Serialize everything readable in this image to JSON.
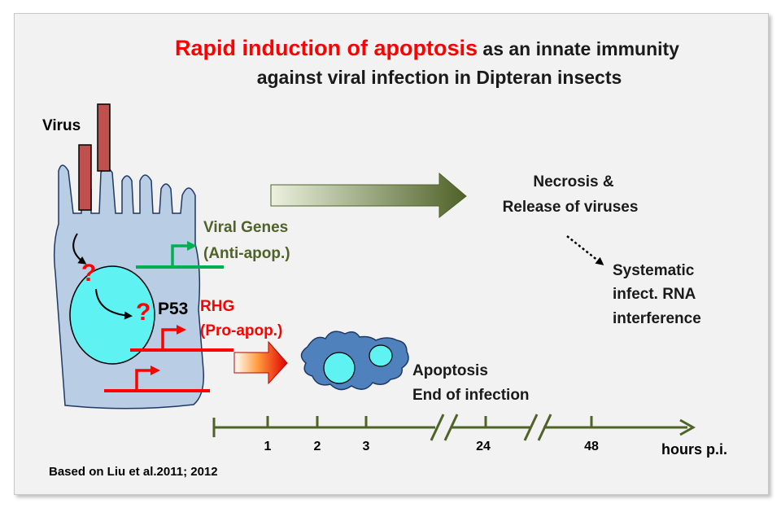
{
  "title": {
    "line1_red": "Rapid induction of apoptosis",
    "line1_rest": " as an innate immunity",
    "line2": "against viral infection in Dipteran insects"
  },
  "labels": {
    "virus": "Virus",
    "viral_genes": "Viral Genes",
    "anti_apop": "(Anti-apop.)",
    "p53": "P53",
    "rhg": "RHG",
    "pro_apop": "(Pro-apop.)",
    "question1": "?",
    "question2": "?",
    "necrosis1": "Necrosis &",
    "necrosis2": "Release of viruses",
    "systematic1": "Systematic",
    "systematic2": "infect. RNA",
    "systematic3": "interference",
    "apoptosis1": "Apoptosis",
    "apoptosis2": "End of infection",
    "citation": "Based on Liu et al.2011; 2012"
  },
  "timeline": {
    "ticks": [
      "1",
      "2",
      "3",
      "24",
      "48"
    ],
    "unit": "hours p.i."
  },
  "colors": {
    "title_red": "#ff0000",
    "title_black": "#1a1a1a",
    "viral_green": "#4f6228",
    "gene_green": "#00b050",
    "rhg_red": "#ff0000",
    "cell_fill": "#b9cde5",
    "cell_stroke": "#1f3864",
    "nucleus": "#5ff2f2",
    "virus_rod": "#c0504d",
    "timeline": "#4f6228",
    "apoptotic_cell": "#4f81bd"
  }
}
